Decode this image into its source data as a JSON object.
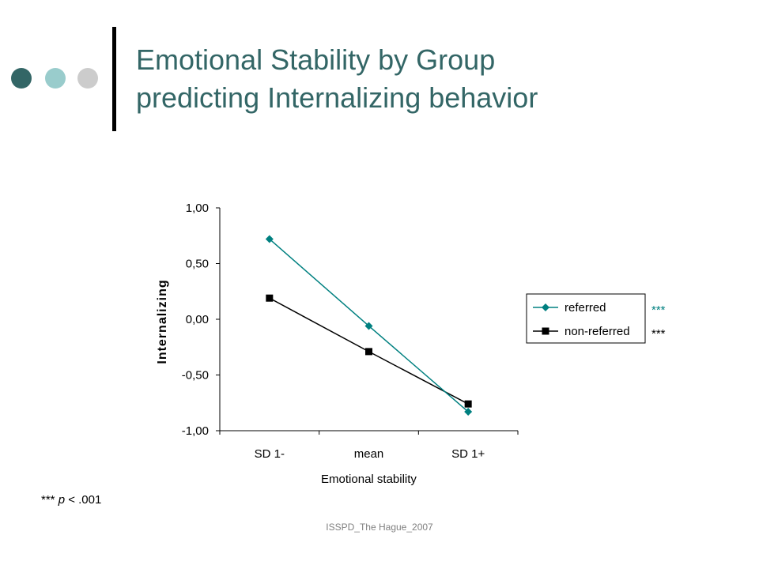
{
  "slide": {
    "title_line1": "Emotional Stability by Group",
    "title_line2": "predicting Internalizing behavior",
    "footnote_stars": "***",
    "footnote_p": "p",
    "footnote_rest": "< .001",
    "footer": "ISSPD_The Hague_2007",
    "decor_colors": [
      "#336666",
      "#99cccc",
      "#cccccc"
    ],
    "title_color": "#336666"
  },
  "chart_data": {
    "type": "line",
    "xlabel": "Emotional stability",
    "ylabel": "Internalizing",
    "categories": [
      "SD 1-",
      "mean",
      "SD 1+"
    ],
    "ylim": [
      -1.0,
      1.0
    ],
    "yticks": [
      1.0,
      0.5,
      0.0,
      -0.5,
      -1.0
    ],
    "ytick_labels": [
      "1,00",
      "0,50",
      "0,00",
      "-0,50",
      "-1,00"
    ],
    "grid": false,
    "legend_position": "right",
    "series": [
      {
        "name": "referred",
        "values": [
          0.72,
          -0.06,
          -0.83
        ],
        "color": "#008080",
        "marker": "diamond",
        "significance": "***"
      },
      {
        "name": "non-referred",
        "values": [
          0.19,
          -0.29,
          -0.76
        ],
        "color": "#000000",
        "marker": "square",
        "significance": "***"
      }
    ]
  }
}
